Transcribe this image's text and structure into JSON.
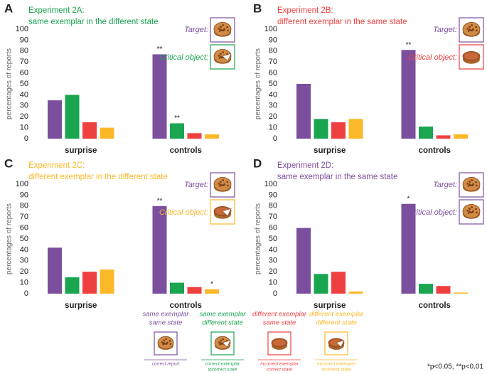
{
  "chart_data": [
    {
      "type": "bar",
      "label": "A",
      "title": "Experiment 2A:",
      "subtitle": "same exemplar in the different state",
      "title_color": "#1aa550",
      "target_label": "Target:",
      "critical_label": "Critical object:",
      "ylabel": "percentages of reports",
      "ylim": [
        0,
        100
      ],
      "yticks": [
        0,
        10,
        20,
        30,
        40,
        50,
        60,
        70,
        80,
        90,
        100
      ],
      "categories": [
        "surprise",
        "controls"
      ],
      "series": [
        {
          "color": "#7b4f9e",
          "values": [
            35,
            77
          ],
          "significance": [
            null,
            "**"
          ]
        },
        {
          "color": "#1aa550",
          "values": [
            40,
            14
          ],
          "significance": [
            null,
            "**"
          ]
        },
        {
          "color": "#ef4040",
          "values": [
            15,
            5
          ],
          "significance": [
            null,
            null
          ]
        },
        {
          "color": "#fbb829",
          "values": [
            10,
            4
          ],
          "significance": [
            null,
            null
          ]
        }
      ]
    },
    {
      "type": "bar",
      "label": "B",
      "title": "Experiment 2B:",
      "subtitle": "different exemplar in the same state",
      "title_color": "#ef4040",
      "target_label": "Target:",
      "critical_label": "Critical object:",
      "ylabel": "percentages of reports",
      "ylim": [
        0,
        100
      ],
      "yticks": [
        0,
        10,
        20,
        30,
        40,
        50,
        60,
        70,
        80,
        90,
        100
      ],
      "categories": [
        "surprise",
        "controls"
      ],
      "series": [
        {
          "color": "#7b4f9e",
          "values": [
            50,
            81
          ],
          "significance": [
            null,
            "**"
          ]
        },
        {
          "color": "#1aa550",
          "values": [
            18,
            11
          ],
          "significance": [
            null,
            null
          ]
        },
        {
          "color": "#ef4040",
          "values": [
            15,
            3
          ],
          "significance": [
            null,
            null
          ]
        },
        {
          "color": "#fbb829",
          "values": [
            18,
            4
          ],
          "significance": [
            null,
            null
          ]
        }
      ]
    },
    {
      "type": "bar",
      "label": "C",
      "title": "Experiment 2C:",
      "subtitle": "different exemplar in the different state",
      "title_color": "#fbb829",
      "target_label": "Target:",
      "critical_label": "Critical object:",
      "ylabel": "percentages of reports",
      "ylim": [
        0,
        100
      ],
      "yticks": [
        0,
        10,
        20,
        30,
        40,
        50,
        60,
        70,
        80,
        90,
        100
      ],
      "categories": [
        "surprise",
        "controls"
      ],
      "series": [
        {
          "color": "#7b4f9e",
          "values": [
            42,
            80
          ],
          "significance": [
            null,
            "**"
          ]
        },
        {
          "color": "#1aa550",
          "values": [
            15,
            10
          ],
          "significance": [
            null,
            null
          ]
        },
        {
          "color": "#ef4040",
          "values": [
            20,
            6
          ],
          "significance": [
            null,
            null
          ]
        },
        {
          "color": "#fbb829",
          "values": [
            22,
            4
          ],
          "significance": [
            null,
            "*"
          ]
        }
      ]
    },
    {
      "type": "bar",
      "label": "D",
      "title": "Experiment 2D:",
      "subtitle": "same exemplar in the same state",
      "title_color": "#7b4f9e",
      "target_label": "Target:",
      "critical_label": "Critical object:",
      "ylabel": "percentages of reports",
      "ylim": [
        0,
        100
      ],
      "yticks": [
        0,
        10,
        20,
        30,
        40,
        50,
        60,
        70,
        80,
        90,
        100
      ],
      "categories": [
        "surprise",
        "controls"
      ],
      "series": [
        {
          "color": "#7b4f9e",
          "values": [
            60,
            82
          ],
          "significance": [
            null,
            "*"
          ]
        },
        {
          "color": "#1aa550",
          "values": [
            18,
            9
          ],
          "significance": [
            null,
            null
          ]
        },
        {
          "color": "#ef4040",
          "values": [
            20,
            7
          ],
          "significance": [
            null,
            null
          ]
        },
        {
          "color": "#fbb829",
          "values": [
            2,
            1
          ],
          "significance": [
            null,
            null
          ]
        }
      ]
    }
  ],
  "legend": {
    "items": [
      {
        "color": "#7b4f9e",
        "lines": [
          "same exemplar",
          "same state"
        ],
        "caption": [
          "correct report"
        ]
      },
      {
        "color": "#1aa550",
        "lines": [
          "same exemplar",
          "different state"
        ],
        "caption": [
          "correct exemplar",
          "incorrect state"
        ]
      },
      {
        "color": "#ef4040",
        "lines": [
          "different exemplar",
          "same state"
        ],
        "caption": [
          "incorrect exemplar",
          "correct state"
        ]
      },
      {
        "color": "#fbb829",
        "lines": [
          "different exemplar",
          "different state"
        ],
        "caption": [
          "incorrect exemplar",
          "incorrect state"
        ]
      }
    ],
    "footnote": "*p<0.05, **p<0.01"
  }
}
